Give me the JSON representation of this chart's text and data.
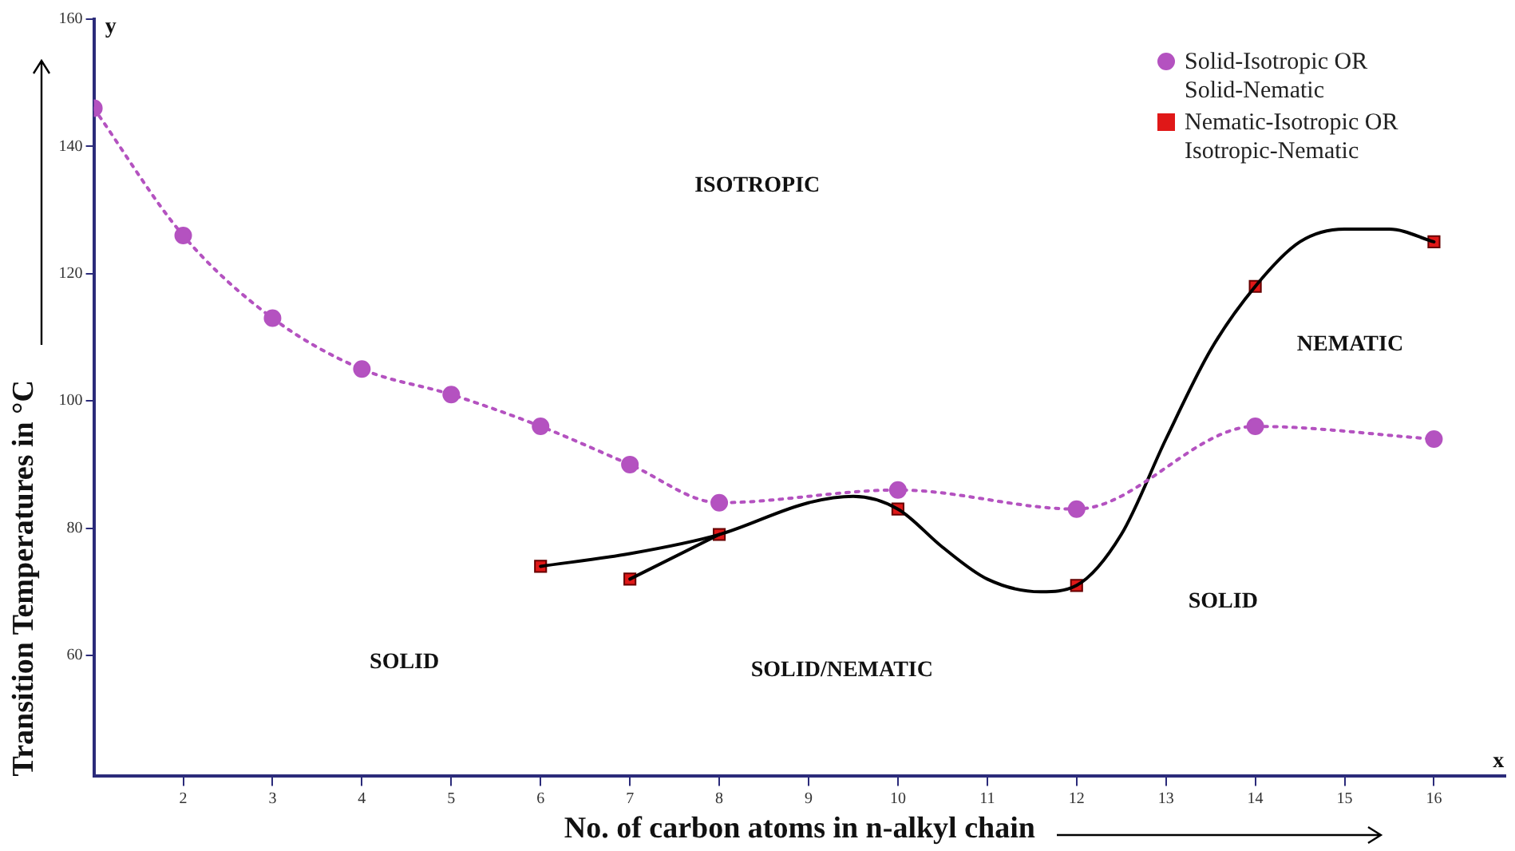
{
  "chart_data": {
    "type": "line",
    "xlabel": "No. of carbon atoms in n-alkyl chain",
    "ylabel": "Transition Temperatures in °C",
    "xlim": [
      1,
      16.8
    ],
    "xticks": [
      2,
      3,
      4,
      5,
      6,
      7,
      8,
      9,
      10,
      11,
      12,
      13,
      14,
      15,
      16
    ],
    "ylim": [
      41,
      160
    ],
    "yticks": [
      60,
      80,
      100,
      120,
      140,
      160
    ],
    "grid": false,
    "legend": "top right",
    "series": [
      {
        "name": "Solid-Isotropic OR Solid-Nematic",
        "color": "#b452c0",
        "line_style": "dotted",
        "marker": "circle",
        "x": [
          1,
          2,
          3,
          4,
          5,
          6,
          7,
          8,
          10,
          12,
          14,
          16
        ],
        "values": [
          146,
          126,
          113,
          105,
          101,
          96,
          90,
          84,
          86,
          83,
          96,
          94
        ]
      },
      {
        "type": "line",
        "color": "#000000",
        "line_style": "solid",
        "marker": "none",
        "x": [
          6,
          7,
          8,
          9,
          9.5,
          10,
          10.5,
          11,
          11.6,
          12,
          12.5,
          13,
          13.5,
          14,
          14.5,
          15,
          15.5,
          16
        ],
        "values": [
          74,
          76,
          79,
          84,
          85,
          83,
          77,
          72,
          70,
          71,
          79,
          94,
          108,
          118,
          125,
          127,
          127,
          125
        ]
      },
      {
        "type": "line",
        "color": "#000000",
        "line_style": "solid",
        "marker": "none",
        "x": [
          7,
          8
        ],
        "values": [
          72,
          79
        ]
      },
      {
        "name": "Nematic-Isotropic OR Isotropic-Nematic",
        "type": "scatter",
        "color": "#e01818",
        "marker": "square",
        "x": [
          6,
          7,
          8,
          10,
          12,
          14,
          16
        ],
        "values": [
          74,
          72,
          79,
          83,
          71,
          118,
          125
        ]
      }
    ],
    "annotations": [
      "ISOTROPIC",
      "NEMATIC",
      "SOLID",
      "SOLID/NEMATIC",
      "SOLID",
      "y",
      "x"
    ]
  }
}
